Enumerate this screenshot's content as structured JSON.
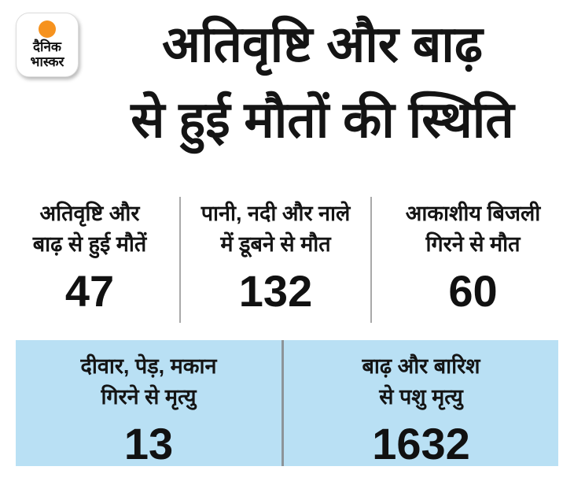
{
  "logo": {
    "name": "Dainik Bhaskar",
    "line1": "दैनिक",
    "line2": "भास्कर"
  },
  "header": {
    "title_line1": "अतिवृष्टि और बाढ़",
    "title_line2": "से हुई मौतों की स्थिति"
  },
  "top_stats": [
    {
      "label_line1": "अतिवृष्टि और",
      "label_line2": "बाढ़ से हुई मौतें",
      "value": "47"
    },
    {
      "label_line1": "पानी, नदी और नाले",
      "label_line2": "में डूबने से मौत",
      "value": "132"
    },
    {
      "label_line1": "आकाशीय बिजली",
      "label_line2": "गिरने से मौत",
      "value": "60"
    }
  ],
  "bottom_stats": [
    {
      "label_line1": "दीवार, पेड़, मकान",
      "label_line2": "गिरने से मृत्यु",
      "value": "13"
    },
    {
      "label_line1": "बाढ़ और बारिश",
      "label_line2": "से पशु मृत्यु",
      "value": "1632"
    }
  ],
  "colors": {
    "background": "#ffffff",
    "highlight_panel": "#b9e0f4",
    "accent_orange": "#f6921e",
    "top_divider": "#a9a9a9",
    "panel_divider": "#8c9499",
    "text": "#141414"
  },
  "chart_data": {
    "type": "table",
    "title": "अतिवृष्टि और बाढ़ से हुई मौतों की स्थिति",
    "categories": [
      "अतिवृष्टि और बाढ़ से हुई मौतें",
      "पानी, नदी और नाले में डूबने से मौत",
      "आकाशीय बिजली गिरने से मौत",
      "दीवार, पेड़, मकान गिरने से मृत्यु",
      "बाढ़ और बारिश से पशु मृत्यु"
    ],
    "values": [
      47,
      132,
      60,
      13,
      1632
    ]
  }
}
